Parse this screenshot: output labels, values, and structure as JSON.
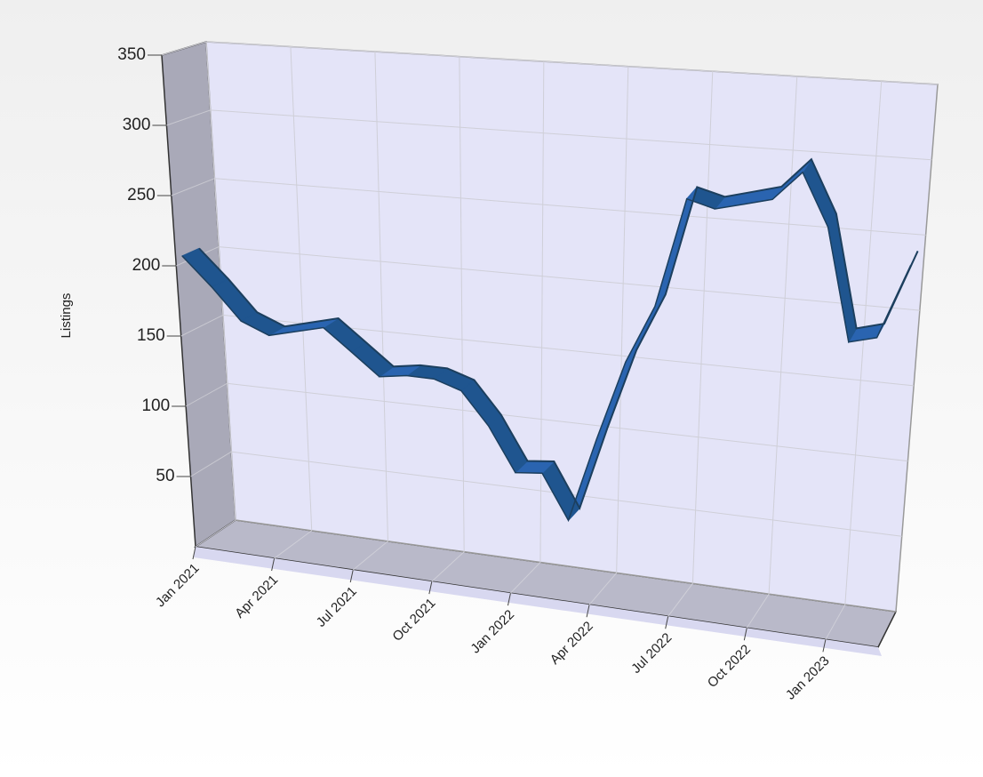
{
  "chart_data": {
    "type": "line",
    "ylabel": "Listings",
    "x": [
      "2021-01",
      "2021-02",
      "2021-03",
      "2021-04",
      "2021-05",
      "2021-06",
      "2021-07",
      "2021-08",
      "2021-09",
      "2021-10",
      "2021-11",
      "2021-12",
      "2022-01",
      "2022-02",
      "2022-03",
      "2022-04",
      "2022-05",
      "2022-06",
      "2022-07",
      "2022-08",
      "2022-09",
      "2022-10",
      "2022-11",
      "2022-12",
      "2023-01",
      "2023-02",
      "2023-03"
    ],
    "values": [
      205,
      185,
      163,
      155,
      160,
      165,
      150,
      135,
      138,
      138,
      132,
      110,
      80,
      82,
      52,
      110,
      165,
      205,
      280,
      275,
      280,
      285,
      305,
      270,
      195,
      200,
      250
    ],
    "color": "#2a64b0",
    "xlim": [
      "2021-01",
      "2023-03"
    ],
    "xticks": [
      {
        "value": "2021-01",
        "label": "Jan 2021"
      },
      {
        "value": "2021-04",
        "label": "Apr 2021"
      },
      {
        "value": "2021-07",
        "label": "Jul 2021"
      },
      {
        "value": "2021-10",
        "label": "Oct 2021"
      },
      {
        "value": "2022-01",
        "label": "Jan 2022"
      },
      {
        "value": "2022-04",
        "label": "Apr 2022"
      },
      {
        "value": "2022-07",
        "label": "Jul 2022"
      },
      {
        "value": "2022-10",
        "label": "Oct 2022"
      },
      {
        "value": "2023-01",
        "label": "Jan 2023"
      }
    ],
    "ylim": [
      0,
      350
    ],
    "yticks": [
      50,
      100,
      150,
      200,
      250,
      300,
      350
    ],
    "grid": true
  }
}
